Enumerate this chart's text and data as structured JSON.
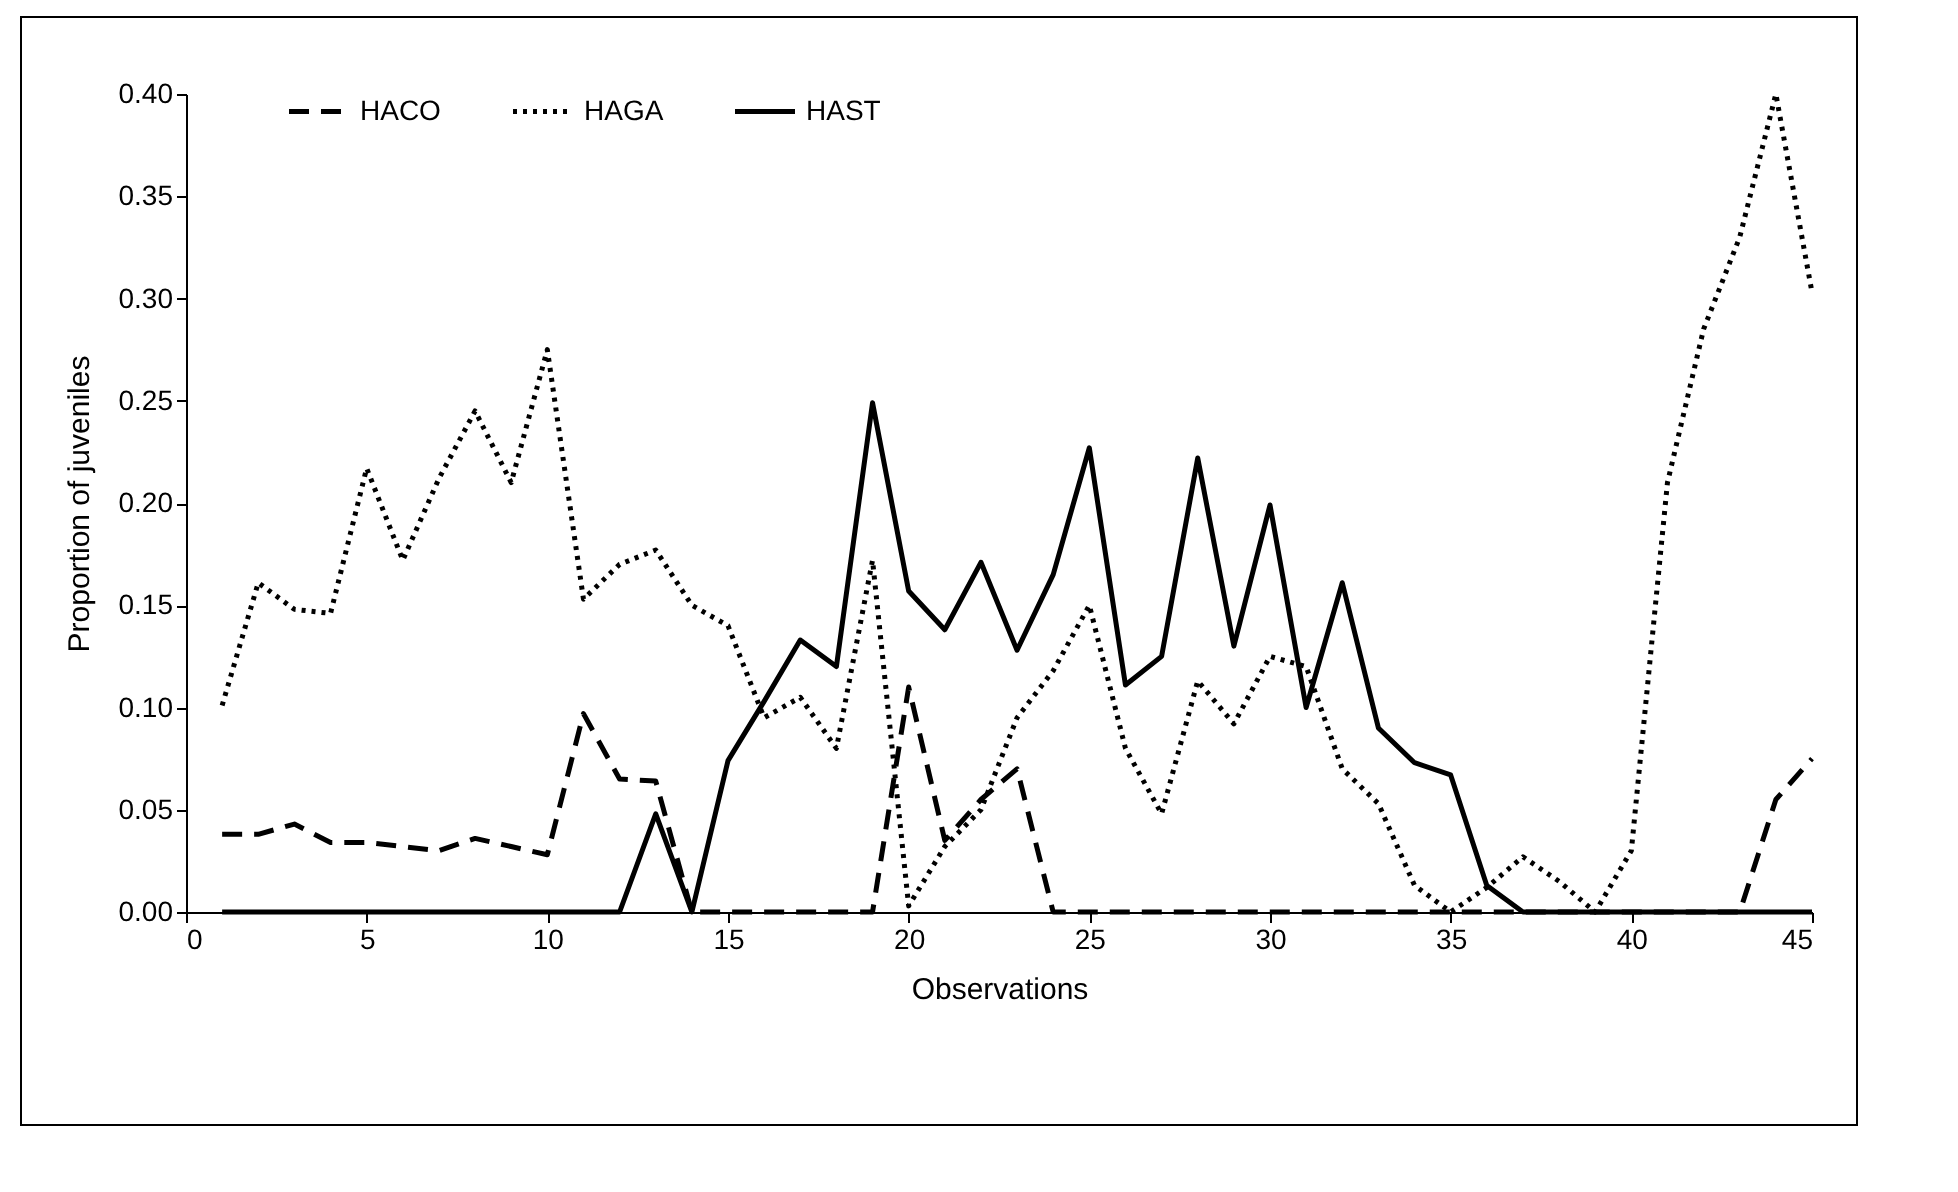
{
  "chart_data": {
    "type": "line",
    "xlabel": "Observations",
    "ylabel": "Proportion of juveniles",
    "x": [
      1,
      2,
      3,
      4,
      5,
      6,
      7,
      8,
      9,
      10,
      11,
      12,
      13,
      14,
      15,
      16,
      17,
      18,
      19,
      20,
      21,
      22,
      23,
      24,
      25,
      26,
      27,
      28,
      29,
      30,
      31,
      32,
      33,
      34,
      35,
      36,
      37,
      38,
      39,
      40,
      41,
      42,
      43,
      44,
      45
    ],
    "xlim": [
      0,
      45
    ],
    "xticks": [
      0,
      5,
      10,
      15,
      20,
      25,
      30,
      35,
      40,
      45
    ],
    "ylim": [
      0,
      0.4
    ],
    "yticks": [
      {
        "value": 0,
        "label": "0.00"
      },
      {
        "value": 0.05,
        "label": "0.05"
      },
      {
        "value": 0.1,
        "label": "0.10"
      },
      {
        "value": 0.15,
        "label": "0.15"
      },
      {
        "value": 0.2,
        "label": "0.20"
      },
      {
        "value": 0.25,
        "label": "0.25"
      },
      {
        "value": 0.3,
        "label": "0.30"
      },
      {
        "value": 0.35,
        "label": "0.35"
      },
      {
        "value": 0.4,
        "label": "0.40"
      }
    ],
    "grid": false,
    "legend": "top",
    "marker": "none",
    "series": [
      {
        "name": "HACO",
        "color": "#000000",
        "line_style": "dashed",
        "values": [
          0.038,
          0.038,
          0.043,
          0.034,
          0.034,
          0.032,
          0.03,
          0.036,
          0.032,
          0.028,
          0.097,
          0.065,
          0.064,
          0,
          0,
          0,
          0,
          0,
          0,
          0.11,
          0.035,
          0.055,
          0.07,
          0,
          0,
          0,
          0,
          0,
          0,
          0,
          0,
          0,
          0,
          0,
          0,
          0,
          0,
          0,
          0,
          0,
          0,
          0,
          0,
          0.055,
          0.075
        ]
      },
      {
        "name": "HAGA",
        "color": "#000000",
        "line_style": "dotted",
        "values": [
          0.101,
          0.161,
          0.148,
          0.146,
          0.217,
          0.172,
          0.212,
          0.245,
          0.21,
          0.275,
          0.153,
          0.17,
          0.177,
          0.15,
          0.14,
          0.095,
          0.105,
          0.08,
          0.172,
          0.003,
          0.032,
          0.05,
          0.095,
          0.118,
          0.15,
          0.08,
          0.048,
          0.113,
          0.092,
          0.125,
          0.12,
          0.07,
          0.053,
          0.013,
          0,
          0.012,
          0.027,
          0.015,
          0,
          0.03,
          0.21,
          0.285,
          0.33,
          0.4,
          0.303
        ]
      },
      {
        "name": "HAST",
        "color": "#000000",
        "line_style": "solid",
        "values": [
          0,
          0,
          0,
          0,
          0,
          0,
          0,
          0,
          0,
          0,
          0,
          0,
          0.048,
          0,
          0.074,
          0.103,
          0.133,
          0.12,
          0.249,
          0.157,
          0.138,
          0.171,
          0.128,
          0.165,
          0.227,
          0.111,
          0.125,
          0.222,
          0.13,
          0.199,
          0.1,
          0.161,
          0.09,
          0.073,
          0.067,
          0.013,
          0,
          0,
          0,
          0,
          0,
          0,
          0,
          0,
          0
        ]
      }
    ]
  }
}
